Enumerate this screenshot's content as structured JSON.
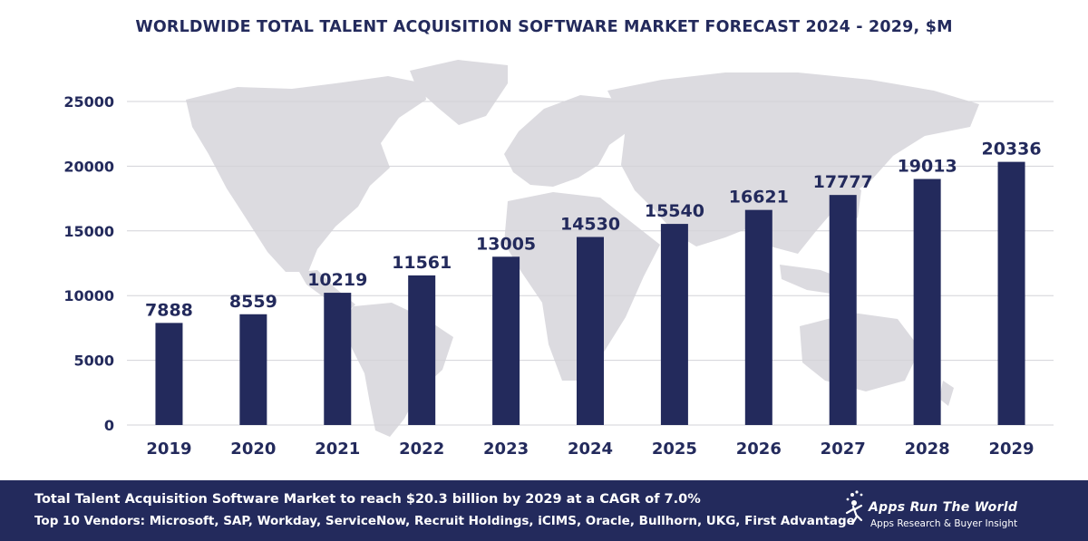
{
  "chart_data": {
    "type": "bar",
    "title": "WORLDWIDE TOTAL TALENT ACQUISITION SOFTWARE MARKET FORECAST 2024 - 2029, $M",
    "categories": [
      "2019",
      "2020",
      "2021",
      "2022",
      "2023",
      "2024",
      "2025",
      "2026",
      "2027",
      "2028",
      "2029"
    ],
    "values": [
      7888,
      8559,
      10219,
      11561,
      13005,
      14530,
      15540,
      16621,
      17777,
      19013,
      20336
    ],
    "ylim": [
      0,
      25000
    ],
    "yticks": [
      0,
      5000,
      10000,
      15000,
      20000,
      25000
    ],
    "xlabel": "",
    "ylabel": "",
    "grid": true,
    "bar_color": "#232a5c"
  },
  "footer": {
    "line1": "Total Talent Acquisition Software Market to reach $20.3 billion by 2029 at a CAGR of 7.0%",
    "line2": "Top 10 Vendors: Microsoft, SAP, Workday, ServiceNow, Recruit Holdings, iCIMS, Oracle, Bullhorn, UKG, First Advantage"
  },
  "logo": {
    "brand": "Apps Run The World",
    "tagline": "Apps Research & Buyer Insight"
  },
  "colors": {
    "navy": "#232a5c",
    "map": "#dcdbe0",
    "grid": "#d3d3d8"
  }
}
